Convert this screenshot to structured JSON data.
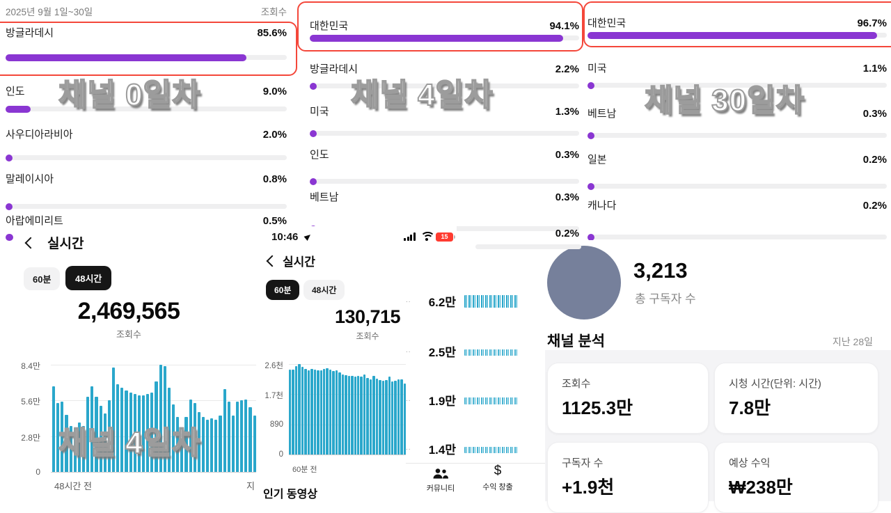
{
  "colors": {
    "purple": "#8a36d2",
    "cyan": "#2aa7cb",
    "redbox": "#f4473a",
    "track": "#efeff0"
  },
  "overlays": {
    "day0": "채널 0일차",
    "day4_top": "채널 4일차",
    "day30": "채널 30일차",
    "day4_bottom": "채널 4일차"
  },
  "panel_day0": {
    "date_range": "2025년 9월 1일~30일",
    "metric_header": "조회수",
    "rows": [
      {
        "country": "방글라데시",
        "pct": "85.6%",
        "value": 85.6
      },
      {
        "country": "인도",
        "pct": "9.0%",
        "value": 9.0
      },
      {
        "country": "사우디아라비아",
        "pct": "2.0%",
        "value": 2.0
      },
      {
        "country": "말레이시아",
        "pct": "0.8%",
        "value": 0.8
      },
      {
        "country": "아랍에미리트",
        "pct": "0.5%",
        "value": 0.5
      }
    ]
  },
  "panel_day4": {
    "rows": [
      {
        "country": "대한민국",
        "pct": "94.1%",
        "value": 94.1
      },
      {
        "country": "방글라데시",
        "pct": "2.2%",
        "value": 2.2
      },
      {
        "country": "미국",
        "pct": "1.3%",
        "value": 1.3
      },
      {
        "country": "인도",
        "pct": "0.3%",
        "value": 0.3
      },
      {
        "country": "베트남",
        "pct": "0.3%",
        "value": 0.3
      },
      {
        "country": "",
        "pct": "0.2%",
        "value": 0.2
      }
    ]
  },
  "panel_day30": {
    "rows": [
      {
        "country": "대한민국",
        "pct": "96.7%",
        "value": 96.7
      },
      {
        "country": "미국",
        "pct": "1.1%",
        "value": 1.1
      },
      {
        "country": "베트남",
        "pct": "0.3%",
        "value": 0.3
      },
      {
        "country": "일본",
        "pct": "0.2%",
        "value": 0.2
      },
      {
        "country": "캐나다",
        "pct": "0.2%",
        "value": 0.2
      }
    ]
  },
  "realtime_48h": {
    "title": "실시간",
    "tab_60": "60분",
    "tab_48": "48시간",
    "views": "2,469,565",
    "views_label": "조회수"
  },
  "realtime_60m": {
    "status_time": "10:46",
    "battery": "15",
    "title": "실시간",
    "tab_60": "60분",
    "tab_48": "48시간",
    "views": "130,715",
    "views_label": "조회수",
    "popular_header": "인기 동영상"
  },
  "popular_videos": {
    "rows": [
      {
        "truncated": "..",
        "views": "6.2만"
      },
      {
        "truncated": "..",
        "views": "2.5만"
      },
      {
        "truncated": "..",
        "views": "1.9만"
      },
      {
        "truncated": "..",
        "views": "1.4만"
      }
    ],
    "nav": [
      {
        "label": "커뮤니티"
      },
      {
        "label": "수익 창출",
        "icon": "$"
      }
    ]
  },
  "channel": {
    "subscribers": "3,213",
    "subscribers_label": "총 구독자 수",
    "section_title": "채널 분석",
    "period": "지난 28일",
    "cards": [
      {
        "label": "조회수",
        "value": "1125.3만"
      },
      {
        "label": "시청 시간(단위: 시간)",
        "value": "7.8만"
      },
      {
        "label": "구독자 수",
        "value": "+1.9천"
      },
      {
        "label": "예상 수익",
        "value": "₩238만"
      }
    ]
  },
  "chart_data": [
    {
      "id": "realtime-48h",
      "type": "bar",
      "metric": "조회수",
      "total": "2,469,565",
      "ylim": [
        0,
        84000
      ],
      "ytick_values": [
        0,
        28000,
        56000,
        84000
      ],
      "ytick_labels": [
        "0",
        "2.8만",
        "5.6만",
        "8.4만"
      ],
      "xlabels": [
        "48시간 전",
        "지"
      ],
      "values": [
        67000,
        54000,
        55000,
        45000,
        36000,
        35000,
        39000,
        36000,
        59000,
        67000,
        59000,
        52000,
        46000,
        56000,
        82000,
        69000,
        66000,
        64000,
        62000,
        61000,
        60000,
        60000,
        61000,
        62000,
        71000,
        84000,
        83000,
        66000,
        53000,
        43000,
        30000,
        43000,
        57000,
        54000,
        47000,
        43000,
        41000,
        42000,
        41000,
        44000,
        65000,
        55000,
        44000,
        55000,
        56000,
        57000,
        51000,
        44000
      ]
    },
    {
      "id": "realtime-60m",
      "type": "bar",
      "metric": "조회수",
      "total": "130,715",
      "ylim": [
        0,
        2600
      ],
      "ytick_values": [
        0,
        890,
        1700,
        2600
      ],
      "ytick_labels": [
        "0",
        "890",
        "1.7천",
        "2.6천"
      ],
      "xlabels": [
        "60분 전"
      ],
      "values": [
        2450,
        2440,
        2550,
        2600,
        2520,
        2460,
        2420,
        2470,
        2440,
        2430,
        2420,
        2470,
        2480,
        2450,
        2410,
        2430,
        2360,
        2300,
        2280,
        2270,
        2260,
        2250,
        2260,
        2240,
        2310,
        2200,
        2160,
        2260,
        2180,
        2140,
        2120,
        2140,
        2240,
        2100,
        2130,
        2160,
        2160,
        2050
      ]
    }
  ]
}
